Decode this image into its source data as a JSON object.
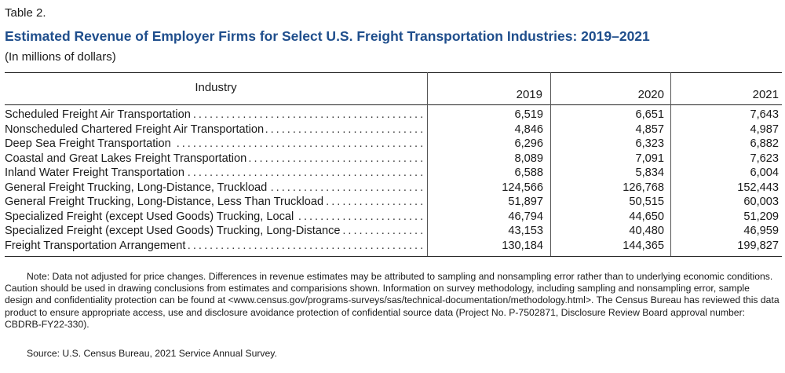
{
  "table_label": "Table 2.",
  "title": "Estimated Revenue of Employer Firms for Select U.S. Freight Transportation Industries: 2019–2021",
  "units": "(In millions of dollars)",
  "columns": {
    "industry": "Industry",
    "years": [
      "2019",
      "2020",
      "2021"
    ]
  },
  "rows": [
    {
      "industry": "Scheduled Freight Air Transportation",
      "values": [
        "6,519",
        "6,651",
        "7,643"
      ]
    },
    {
      "industry": "Nonscheduled Chartered Freight Air Transportation",
      "values": [
        "4,846",
        "4,857",
        "4,987"
      ]
    },
    {
      "industry": "Deep Sea Freight Transportation",
      "values": [
        "6,296",
        "6,323",
        "6,882"
      ]
    },
    {
      "industry": "Coastal and Great Lakes Freight Transportation",
      "values": [
        "8,089",
        "7,091",
        "7,623"
      ]
    },
    {
      "industry": "Inland Water Freight Transportation",
      "values": [
        "6,588",
        "5,834",
        "6,004"
      ]
    },
    {
      "industry": "General Freight Trucking, Long-Distance, Truckload",
      "values": [
        "124,566",
        "126,768",
        "152,443"
      ]
    },
    {
      "industry": "General Freight Trucking, Long-Distance, Less Than Truckload",
      "values": [
        "51,897",
        "50,515",
        "60,003"
      ]
    },
    {
      "industry": "Specialized Freight (except Used Goods) Trucking, Local",
      "values": [
        "46,794",
        "44,650",
        "51,209"
      ]
    },
    {
      "industry": "Specialized Freight (except Used Goods) Trucking, Long-Distance",
      "values": [
        "43,153",
        "40,480",
        "46,959"
      ]
    },
    {
      "industry": "Freight Transportation Arrangement",
      "values": [
        "130,184",
        "144,365",
        "199,827"
      ]
    }
  ],
  "note": "Note: Data not adjusted for price changes. Differences in revenue estimates may be attributed to sampling and nonsampling error rather than to underlying economic conditions. Caution should be used in drawing conclusions from estimates and comparisions shown. Information on survey methodology, including sampling and nonsampling error, sample design and confidentiality protection can be found at <www.census.gov/programs-surveys/sas/technical-documentation/methodology.html>. The Census Bureau has reviewed this data product to ensure appropriate access, use and disclosure avoidance protection of confidential source data (Project No. P-7502871, Disclosure Review Board approval number: CBDRB-FY22-330).",
  "source": "Source: U.S. Census Bureau, 2021 Service Annual Survey."
}
